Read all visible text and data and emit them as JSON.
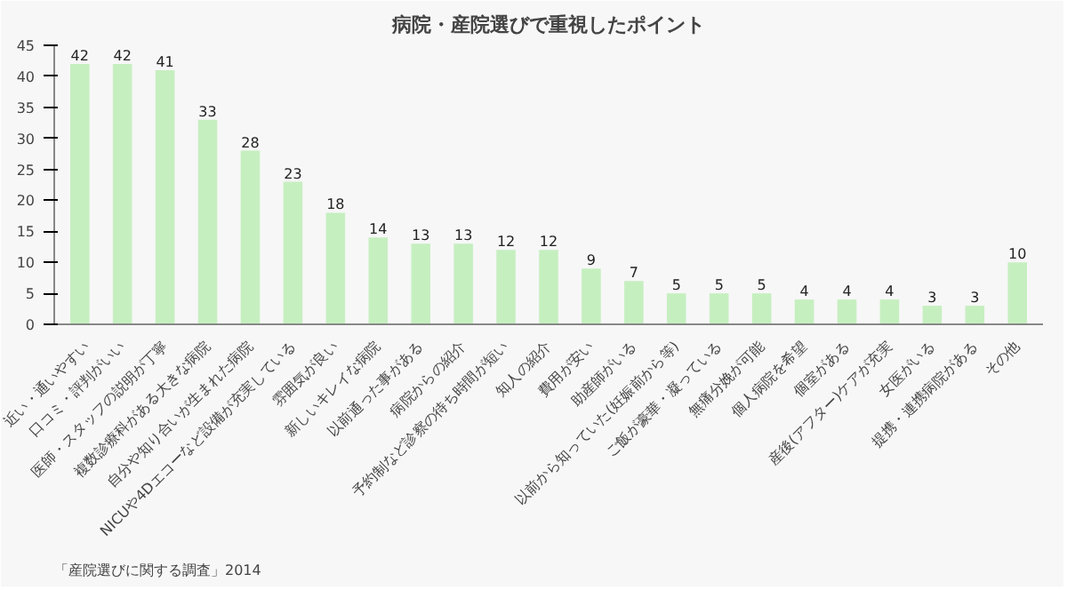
{
  "chart_data": {
    "type": "bar",
    "title": "病院・産院選びで重視したポイント",
    "categories": [
      "近い・通いやすい",
      "口コミ・評判がいい",
      "医師・スタッフの説明が丁寧",
      "複数診療科がある大きな病院",
      "自分や知り合いが生まれた病院",
      "NICUや4Dエコーなど設備が充実している",
      "雰囲気が良い",
      "新しいキレイな病院",
      "以前通った事がある",
      "病院からの紹介",
      "予約制など診察の待ち時間が短い",
      "知人の紹介",
      "費用が安い",
      "助産師がいる",
      "以前から知っていた(妊娠前から等)",
      "ご飯が豪華・凝っている",
      "無痛分娩が可能",
      "個人病院を希望",
      "個室がある",
      "産後(アフター)ケアが充実",
      "女医がいる",
      "提携・連携病院がある",
      "その他"
    ],
    "values": [
      42,
      42,
      41,
      33,
      28,
      23,
      18,
      14,
      13,
      13,
      12,
      12,
      9,
      7,
      5,
      5,
      5,
      4,
      4,
      4,
      3,
      3,
      10
    ],
    "color": "#c6efc0",
    "ylim": [
      0,
      45
    ],
    "yticks": [
      0,
      5,
      10,
      15,
      20,
      25,
      30,
      35,
      40,
      45
    ],
    "data_labels": true,
    "grid": false,
    "annotations": [
      "「産院選びに関する調査」2014"
    ]
  }
}
